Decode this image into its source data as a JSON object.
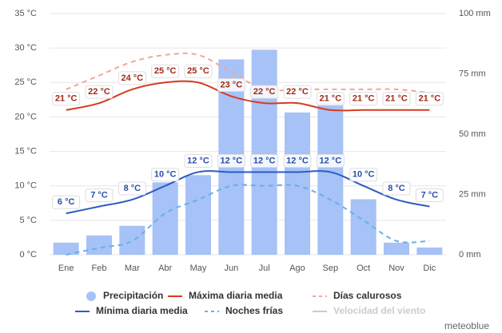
{
  "chart_data": {
    "type": "bar-line",
    "credit": "meteoblue",
    "categories": [
      "Ene",
      "Feb",
      "Mar",
      "Abr",
      "May",
      "Jun",
      "Jul",
      "Ago",
      "Sep",
      "Oct",
      "Nov",
      "Dic"
    ],
    "ylim": [
      0,
      35
    ],
    "yticks": [
      {
        "value": 0,
        "label": "0 °C"
      },
      {
        "value": 5,
        "label": "5 °C"
      },
      {
        "value": 10,
        "label": "10 °C"
      },
      {
        "value": 15,
        "label": "15 °C"
      },
      {
        "value": 20,
        "label": "20 °C"
      },
      {
        "value": 25,
        "label": "25 °C"
      },
      {
        "value": 30,
        "label": "30 °C"
      },
      {
        "value": 35,
        "label": "35 °C"
      }
    ],
    "y2lim": [
      0,
      100
    ],
    "y2ticks": [
      {
        "value": 0,
        "label": "0 mm"
      },
      {
        "value": 25,
        "label": "25 mm"
      },
      {
        "value": 50,
        "label": "50 mm"
      },
      {
        "value": 75,
        "label": "75 mm"
      },
      {
        "value": 100,
        "label": "100 mm"
      }
    ],
    "grid": true,
    "series": [
      {
        "name": "Precipitación",
        "type": "bar",
        "axis": "y2",
        "color": "#a6c2f6",
        "values": [
          5,
          8,
          12,
          30,
          33,
          81,
          85,
          59,
          63,
          23,
          5,
          3
        ]
      },
      {
        "name": "Máxima diaria media",
        "type": "line",
        "color": "#d93a1f",
        "values": [
          21,
          22,
          24,
          25,
          25,
          23,
          22,
          22,
          21,
          21,
          21,
          21
        ],
        "value_labels": [
          "21 °C",
          "22 °C",
          "24 °C",
          "25 °C",
          "25 °C",
          "23 °C",
          "22 °C",
          "22 °C",
          "21 °C",
          "21 °C",
          "21 °C",
          "21 °C"
        ]
      },
      {
        "name": "Días calurosos",
        "type": "dashed",
        "color": "#f3a597",
        "values": [
          24,
          26,
          28,
          29,
          29,
          26.5,
          24,
          24,
          24,
          24,
          24,
          23.5
        ]
      },
      {
        "name": "Mínima diaria media",
        "type": "line",
        "color": "#2d5bc4",
        "values": [
          6,
          7,
          8,
          10,
          12,
          12,
          12,
          12,
          12,
          10,
          8,
          7
        ],
        "value_labels": [
          "6 °C",
          "7 °C",
          "8 °C",
          "10 °C",
          "12 °C",
          "12 °C",
          "12 °C",
          "12 °C",
          "12 °C",
          "10 °C",
          "8 °C",
          "7 °C"
        ]
      },
      {
        "name": "Noches frías",
        "type": "dashed",
        "color": "#6aaee8",
        "values": [
          0,
          1,
          2,
          6,
          8,
          10,
          10,
          10,
          8,
          5,
          2,
          2
        ]
      }
    ],
    "disabled_legend": [
      {
        "name": "Velocidad del viento",
        "color": "#cccccc"
      }
    ]
  }
}
